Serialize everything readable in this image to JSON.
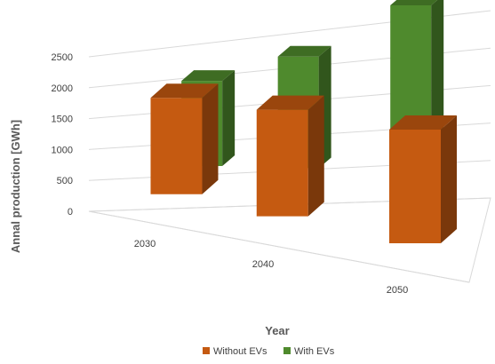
{
  "chart_data": {
    "type": "bar",
    "style": "3d-clustered-column",
    "categories": [
      "2030",
      "2040",
      "2050"
    ],
    "series": [
      {
        "name": "Without EVs",
        "color": "#c55a11",
        "values": [
          1550,
          1600,
          1600
        ]
      },
      {
        "name": "With EVs",
        "color": "#4f8a2d",
        "values": [
          1400,
          1750,
          2450
        ]
      }
    ],
    "ylim": [
      0,
      2500
    ],
    "yticks": [
      "0",
      "500",
      "1000",
      "1500",
      "2000",
      "2500"
    ],
    "xlabel": "Year",
    "ylabel": "Annal production [GWh]",
    "grid": true,
    "legend": "bottom"
  }
}
